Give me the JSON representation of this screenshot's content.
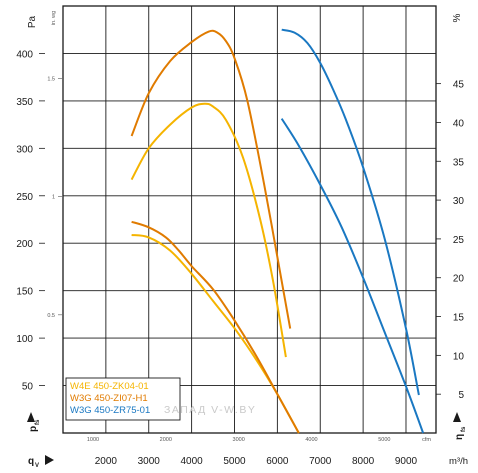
{
  "chart_data": {
    "type": "line",
    "y_unit": "Pa",
    "y_unit_sub": "in. wg",
    "y2_unit": "%",
    "x_unit": "m³/h",
    "x_unit2": "cfm",
    "y_symbol": "p",
    "y_symbol_sub": "fs",
    "x_symbol": "q",
    "x_symbol_sub": "V",
    "y2_symbol": "η",
    "y2_symbol_sub": "fs",
    "xlim": [
      1000,
      9700
    ],
    "ylim": [
      0,
      450
    ],
    "y2lim": [
      0,
      55
    ],
    "x_ticks": [
      "2000",
      "3000",
      "4000",
      "5000",
      "6000",
      "7000",
      "8000",
      "9000"
    ],
    "x_cfm_ticks": [
      "1000",
      "2000",
      "3000",
      "4000",
      "5000"
    ],
    "y_ticks": [
      "50",
      "100",
      "150",
      "200",
      "250",
      "300",
      "350",
      "400"
    ],
    "y_inwg_ticks": [
      "0.5",
      "1",
      "1.5"
    ],
    "y2_ticks": [
      "5",
      "10",
      "15",
      "20",
      "25",
      "30",
      "35",
      "40",
      "45"
    ],
    "legend": [
      {
        "label": "W4E 450-ZK04-01",
        "color": "#f5b400"
      },
      {
        "label": "W3G 450-ZI07-H1",
        "color": "#e07b00"
      },
      {
        "label": "W3G 450-ZR75-01",
        "color": "#1a78c2"
      }
    ],
    "watermark": "ЗАПАД   V-W.BY",
    "series": [
      {
        "color": "#f5b400",
        "pressure": {
          "x": [
            2600,
            3000,
            3500,
            4000,
            4300,
            4500,
            4800,
            5200,
            5600,
            5900,
            6200
          ],
          "y": [
            267,
            300,
            325,
            343,
            347,
            344,
            330,
            290,
            225,
            160,
            80
          ]
        },
        "efficiency": {
          "x": [
            2600,
            3000,
            3500,
            4000,
            4500,
            5000,
            5500,
            6000,
            6500
          ],
          "y": [
            25.5,
            25.2,
            23.5,
            20.5,
            17,
            13.5,
            9.5,
            5,
            0
          ]
        }
      },
      {
        "color": "#e07b00",
        "pressure": {
          "x": [
            2600,
            3000,
            3500,
            4000,
            4400,
            4600,
            4800,
            5000,
            5300,
            5700,
            6100,
            6300
          ],
          "y": [
            313,
            358,
            392,
            412,
            423,
            422,
            413,
            395,
            350,
            260,
            160,
            110
          ]
        },
        "efficiency": {
          "x": [
            2600,
            3000,
            3400,
            3700,
            4000,
            4500,
            5000,
            5500,
            6000,
            6500
          ],
          "y": [
            27.2,
            26.5,
            25.2,
            23.5,
            21.5,
            18.5,
            14.5,
            10,
            5,
            0
          ]
        }
      },
      {
        "color": "#1a78c2",
        "pressure": {
          "x": [
            6100,
            6400,
            6700,
            7000,
            7300,
            7600,
            8000,
            8500,
            9000,
            9300
          ],
          "y": [
            425,
            422,
            411,
            390,
            362,
            330,
            280,
            205,
            110,
            40
          ]
        },
        "efficiency": {
          "x": [
            6100,
            6500,
            7000,
            7500,
            8000,
            8500,
            9000,
            9400
          ],
          "y": [
            40.5,
            37,
            32,
            26.5,
            20,
            13,
            6,
            0
          ]
        }
      }
    ]
  }
}
